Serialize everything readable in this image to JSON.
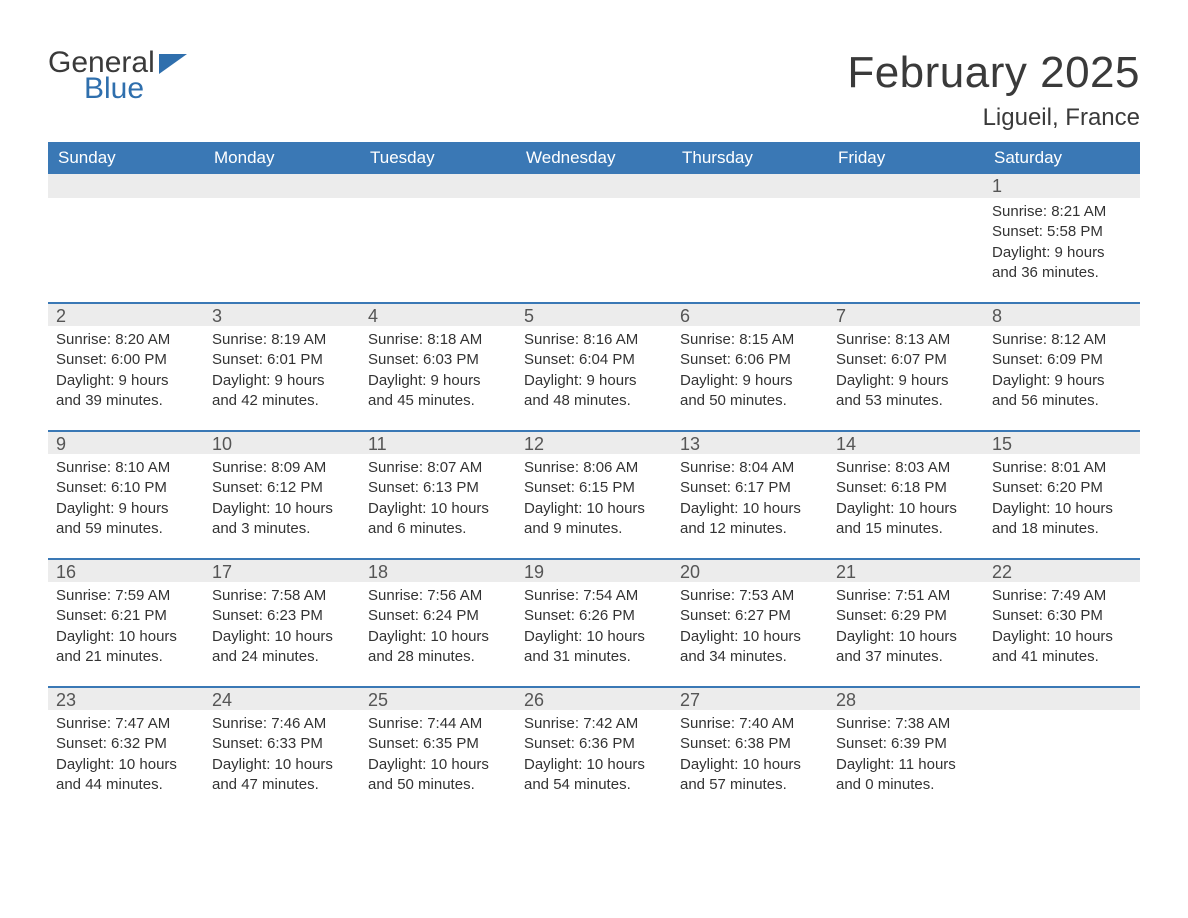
{
  "brand": {
    "word1": "General",
    "word2": "Blue"
  },
  "title": "February 2025",
  "location": "Ligueil, France",
  "colors": {
    "header_bg": "#3a78b5",
    "header_text": "#ffffff",
    "band_bg": "#ececec",
    "band_border": "#3a78b5",
    "body_text": "#333333",
    "logo_blue": "#2f6fad",
    "page_bg": "#ffffff"
  },
  "day_headers": [
    "Sunday",
    "Monday",
    "Tuesday",
    "Wednesday",
    "Thursday",
    "Friday",
    "Saturday"
  ],
  "weeks": [
    [
      {
        "n": "",
        "sunrise": "",
        "sunset": "",
        "daylight": ""
      },
      {
        "n": "",
        "sunrise": "",
        "sunset": "",
        "daylight": ""
      },
      {
        "n": "",
        "sunrise": "",
        "sunset": "",
        "daylight": ""
      },
      {
        "n": "",
        "sunrise": "",
        "sunset": "",
        "daylight": ""
      },
      {
        "n": "",
        "sunrise": "",
        "sunset": "",
        "daylight": ""
      },
      {
        "n": "",
        "sunrise": "",
        "sunset": "",
        "daylight": ""
      },
      {
        "n": "1",
        "sunrise": "Sunrise: 8:21 AM",
        "sunset": "Sunset: 5:58 PM",
        "daylight": "Daylight: 9 hours and 36 minutes."
      }
    ],
    [
      {
        "n": "2",
        "sunrise": "Sunrise: 8:20 AM",
        "sunset": "Sunset: 6:00 PM",
        "daylight": "Daylight: 9 hours and 39 minutes."
      },
      {
        "n": "3",
        "sunrise": "Sunrise: 8:19 AM",
        "sunset": "Sunset: 6:01 PM",
        "daylight": "Daylight: 9 hours and 42 minutes."
      },
      {
        "n": "4",
        "sunrise": "Sunrise: 8:18 AM",
        "sunset": "Sunset: 6:03 PM",
        "daylight": "Daylight: 9 hours and 45 minutes."
      },
      {
        "n": "5",
        "sunrise": "Sunrise: 8:16 AM",
        "sunset": "Sunset: 6:04 PM",
        "daylight": "Daylight: 9 hours and 48 minutes."
      },
      {
        "n": "6",
        "sunrise": "Sunrise: 8:15 AM",
        "sunset": "Sunset: 6:06 PM",
        "daylight": "Daylight: 9 hours and 50 minutes."
      },
      {
        "n": "7",
        "sunrise": "Sunrise: 8:13 AM",
        "sunset": "Sunset: 6:07 PM",
        "daylight": "Daylight: 9 hours and 53 minutes."
      },
      {
        "n": "8",
        "sunrise": "Sunrise: 8:12 AM",
        "sunset": "Sunset: 6:09 PM",
        "daylight": "Daylight: 9 hours and 56 minutes."
      }
    ],
    [
      {
        "n": "9",
        "sunrise": "Sunrise: 8:10 AM",
        "sunset": "Sunset: 6:10 PM",
        "daylight": "Daylight: 9 hours and 59 minutes."
      },
      {
        "n": "10",
        "sunrise": "Sunrise: 8:09 AM",
        "sunset": "Sunset: 6:12 PM",
        "daylight": "Daylight: 10 hours and 3 minutes."
      },
      {
        "n": "11",
        "sunrise": "Sunrise: 8:07 AM",
        "sunset": "Sunset: 6:13 PM",
        "daylight": "Daylight: 10 hours and 6 minutes."
      },
      {
        "n": "12",
        "sunrise": "Sunrise: 8:06 AM",
        "sunset": "Sunset: 6:15 PM",
        "daylight": "Daylight: 10 hours and 9 minutes."
      },
      {
        "n": "13",
        "sunrise": "Sunrise: 8:04 AM",
        "sunset": "Sunset: 6:17 PM",
        "daylight": "Daylight: 10 hours and 12 minutes."
      },
      {
        "n": "14",
        "sunrise": "Sunrise: 8:03 AM",
        "sunset": "Sunset: 6:18 PM",
        "daylight": "Daylight: 10 hours and 15 minutes."
      },
      {
        "n": "15",
        "sunrise": "Sunrise: 8:01 AM",
        "sunset": "Sunset: 6:20 PM",
        "daylight": "Daylight: 10 hours and 18 minutes."
      }
    ],
    [
      {
        "n": "16",
        "sunrise": "Sunrise: 7:59 AM",
        "sunset": "Sunset: 6:21 PM",
        "daylight": "Daylight: 10 hours and 21 minutes."
      },
      {
        "n": "17",
        "sunrise": "Sunrise: 7:58 AM",
        "sunset": "Sunset: 6:23 PM",
        "daylight": "Daylight: 10 hours and 24 minutes."
      },
      {
        "n": "18",
        "sunrise": "Sunrise: 7:56 AM",
        "sunset": "Sunset: 6:24 PM",
        "daylight": "Daylight: 10 hours and 28 minutes."
      },
      {
        "n": "19",
        "sunrise": "Sunrise: 7:54 AM",
        "sunset": "Sunset: 6:26 PM",
        "daylight": "Daylight: 10 hours and 31 minutes."
      },
      {
        "n": "20",
        "sunrise": "Sunrise: 7:53 AM",
        "sunset": "Sunset: 6:27 PM",
        "daylight": "Daylight: 10 hours and 34 minutes."
      },
      {
        "n": "21",
        "sunrise": "Sunrise: 7:51 AM",
        "sunset": "Sunset: 6:29 PM",
        "daylight": "Daylight: 10 hours and 37 minutes."
      },
      {
        "n": "22",
        "sunrise": "Sunrise: 7:49 AM",
        "sunset": "Sunset: 6:30 PM",
        "daylight": "Daylight: 10 hours and 41 minutes."
      }
    ],
    [
      {
        "n": "23",
        "sunrise": "Sunrise: 7:47 AM",
        "sunset": "Sunset: 6:32 PM",
        "daylight": "Daylight: 10 hours and 44 minutes."
      },
      {
        "n": "24",
        "sunrise": "Sunrise: 7:46 AM",
        "sunset": "Sunset: 6:33 PM",
        "daylight": "Daylight: 10 hours and 47 minutes."
      },
      {
        "n": "25",
        "sunrise": "Sunrise: 7:44 AM",
        "sunset": "Sunset: 6:35 PM",
        "daylight": "Daylight: 10 hours and 50 minutes."
      },
      {
        "n": "26",
        "sunrise": "Sunrise: 7:42 AM",
        "sunset": "Sunset: 6:36 PM",
        "daylight": "Daylight: 10 hours and 54 minutes."
      },
      {
        "n": "27",
        "sunrise": "Sunrise: 7:40 AM",
        "sunset": "Sunset: 6:38 PM",
        "daylight": "Daylight: 10 hours and 57 minutes."
      },
      {
        "n": "28",
        "sunrise": "Sunrise: 7:38 AM",
        "sunset": "Sunset: 6:39 PM",
        "daylight": "Daylight: 11 hours and 0 minutes."
      },
      {
        "n": "",
        "sunrise": "",
        "sunset": "",
        "daylight": ""
      }
    ]
  ]
}
